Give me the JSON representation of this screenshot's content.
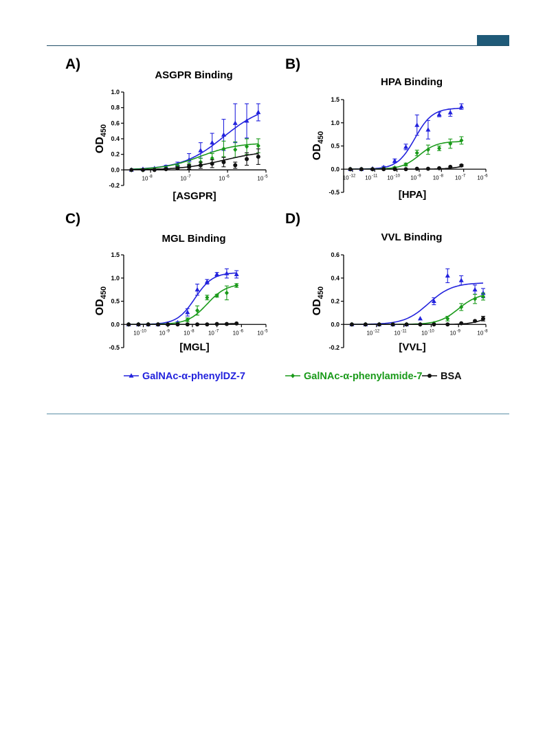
{
  "page": {
    "header_color": "#1f5a78"
  },
  "colors": {
    "dz": "#2222dd",
    "amide": "#1a9a1a",
    "bsa": "#111111"
  },
  "legend": [
    {
      "label": "GalNAc-α-phenylDZ-7",
      "color": "#2222dd",
      "marker": "triangle"
    },
    {
      "label": "GalNAc-α-phenylamide-7",
      "color": "#1a9a1a",
      "marker": "diamond"
    },
    {
      "label": "BSA",
      "color": "#111111",
      "marker": "circle"
    }
  ],
  "chart_data": [
    {
      "panel": "A)",
      "type": "scatter",
      "title": "ASGPR Binding",
      "xlabel": "[ASGPR]",
      "ylabel": "OD",
      "ylabel_sub": "450",
      "xscale": "log",
      "xlim_exp": [
        -8.7,
        -5
      ],
      "ylim": [
        -0.2,
        1.0
      ],
      "yticks": [
        -0.2,
        0.0,
        0.2,
        0.4,
        0.6,
        0.8,
        1.0
      ],
      "yticks_text": [
        "-0.2",
        "0.0",
        "0.2",
        "0.4",
        "0.6",
        "0.8",
        "1.0"
      ],
      "xticks_exp": [
        -8,
        -7,
        -6,
        -5
      ],
      "xticks_text": [
        "-8",
        "-7",
        "-6",
        "-5"
      ],
      "series": [
        {
          "name": "GalNAc-α-phenylDZ-7",
          "marker": "triangle",
          "x_exp": [
            -8.5,
            -8.2,
            -7.9,
            -7.6,
            -7.3,
            -7.0,
            -6.7,
            -6.4,
            -6.1,
            -5.8,
            -5.5,
            -5.2
          ],
          "y": [
            0.0,
            0.01,
            0.02,
            0.04,
            0.07,
            0.13,
            0.25,
            0.35,
            0.45,
            0.6,
            0.63,
            0.74
          ],
          "err": [
            0.01,
            0.01,
            0.01,
            0.02,
            0.03,
            0.08,
            0.1,
            0.12,
            0.2,
            0.25,
            0.22,
            0.11
          ],
          "fit": {
            "bottom": 0.0,
            "top": 0.85,
            "logec50": -6.1,
            "hill": 0.8
          }
        },
        {
          "name": "GalNAc-α-phenylamide-7",
          "marker": "diamond",
          "x_exp": [
            -8.5,
            -8.2,
            -7.9,
            -7.6,
            -7.3,
            -7.0,
            -6.7,
            -6.4,
            -6.1,
            -5.8,
            -5.5,
            -5.2
          ],
          "y": [
            0.0,
            0.0,
            0.01,
            0.02,
            0.04,
            0.06,
            0.1,
            0.15,
            0.27,
            0.26,
            0.3,
            0.31
          ],
          "err": [
            0.01,
            0.01,
            0.01,
            0.01,
            0.02,
            0.03,
            0.05,
            0.06,
            0.1,
            0.1,
            0.1,
            0.09
          ],
          "fit": {
            "bottom": 0.0,
            "top": 0.35,
            "logec50": -6.7,
            "hill": 0.9
          }
        },
        {
          "name": "BSA",
          "marker": "circle",
          "x_exp": [
            -8.5,
            -8.2,
            -7.9,
            -7.6,
            -7.3,
            -7.0,
            -6.7,
            -6.4,
            -6.1,
            -5.8,
            -5.5,
            -5.2
          ],
          "y": [
            0.0,
            0.0,
            0.0,
            0.01,
            0.02,
            0.04,
            0.06,
            0.08,
            0.1,
            0.06,
            0.14,
            0.17
          ],
          "err": [
            0.01,
            0.01,
            0.01,
            0.01,
            0.02,
            0.03,
            0.04,
            0.05,
            0.06,
            0.04,
            0.08,
            0.1
          ],
          "fit": {
            "bottom": 0.0,
            "top": 0.25,
            "logec50": -6.1,
            "hill": 0.8
          }
        }
      ]
    },
    {
      "panel": "B)",
      "type": "scatter",
      "title": "HPA Binding",
      "xlabel": "[HPA]",
      "ylabel": "OD",
      "ylabel_sub": "450",
      "xscale": "log",
      "xlim_exp": [
        -12.4,
        -6
      ],
      "ylim": [
        -0.5,
        1.5
      ],
      "yticks": [
        -0.5,
        0.0,
        0.5,
        1.0,
        1.5
      ],
      "yticks_text": [
        "-0.5",
        "0.0",
        "0.5",
        "1.0",
        "1.5"
      ],
      "xticks_exp": [
        -12,
        -11,
        -10,
        -9,
        -8,
        -7,
        -6
      ],
      "xticks_text": [
        "-12",
        "-11",
        "-10",
        "-9",
        "-8",
        "-7",
        "-6"
      ],
      "series": [
        {
          "name": "GalNAc-α-phenylDZ-7",
          "marker": "triangle",
          "x_exp": [
            -12.1,
            -11.6,
            -11.1,
            -10.6,
            -10.1,
            -9.6,
            -9.1,
            -8.6,
            -8.1,
            -7.6,
            -7.1
          ],
          "y": [
            0.0,
            0.0,
            0.01,
            0.04,
            0.18,
            0.48,
            0.95,
            0.85,
            1.18,
            1.22,
            1.35
          ],
          "err": [
            0.01,
            0.01,
            0.01,
            0.02,
            0.04,
            0.06,
            0.22,
            0.2,
            0.05,
            0.08,
            0.06
          ],
          "fit": {
            "bottom": 0.0,
            "top": 1.32,
            "logec50": -9.2,
            "hill": 1.1
          }
        },
        {
          "name": "GalNAc-α-phenylamide-7",
          "marker": "diamond",
          "x_exp": [
            -12.1,
            -11.6,
            -11.1,
            -10.6,
            -10.1,
            -9.6,
            -9.1,
            -8.6,
            -8.1,
            -7.6,
            -7.1
          ],
          "y": [
            0.0,
            0.0,
            0.0,
            0.01,
            0.03,
            0.1,
            0.35,
            0.42,
            0.45,
            0.55,
            0.62
          ],
          "err": [
            0.01,
            0.01,
            0.01,
            0.01,
            0.02,
            0.03,
            0.06,
            0.1,
            0.05,
            0.1,
            0.08
          ],
          "fit": {
            "bottom": 0.0,
            "top": 0.6,
            "logec50": -9.0,
            "hill": 1.1
          }
        },
        {
          "name": "BSA",
          "marker": "circle",
          "x_exp": [
            -12.1,
            -11.6,
            -11.1,
            -10.6,
            -10.1,
            -9.6,
            -9.1,
            -8.6,
            -8.1,
            -7.6,
            -7.1
          ],
          "y": [
            0.0,
            0.0,
            0.0,
            0.0,
            0.0,
            0.0,
            0.01,
            0.01,
            0.02,
            0.05,
            0.08
          ],
          "err": [
            0.005,
            0.005,
            0.005,
            0.005,
            0.005,
            0.005,
            0.01,
            0.01,
            0.01,
            0.01,
            0.02
          ],
          "fit": {
            "bottom": 0.0,
            "top": 0.2,
            "logec50": -6.7,
            "hill": 1.0
          }
        }
      ]
    },
    {
      "panel": "C)",
      "type": "scatter",
      "title": "MGL Binding",
      "xlabel": "[MGL]",
      "ylabel": "OD",
      "ylabel_sub": "450",
      "xscale": "log",
      "xlim_exp": [
        -10.8,
        -5
      ],
      "ylim": [
        -0.5,
        1.5
      ],
      "yticks": [
        -0.5,
        0.0,
        0.5,
        1.0,
        1.5
      ],
      "yticks_text": [
        "-0.5",
        "0.0",
        "0.5",
        "1.0",
        "1.5"
      ],
      "xticks_exp": [
        -10,
        -9,
        -8,
        -7,
        -6,
        -5
      ],
      "xticks_text": [
        "-10",
        "-9",
        "-8",
        "-7",
        "-6",
        "-5"
      ],
      "series": [
        {
          "name": "GalNAc-α-phenylDZ-7",
          "marker": "triangle",
          "x_exp": [
            -10.6,
            -10.2,
            -9.8,
            -9.4,
            -9.0,
            -8.6,
            -8.2,
            -7.8,
            -7.4,
            -7.0,
            -6.6,
            -6.2
          ],
          "y": [
            0.0,
            0.0,
            0.0,
            0.0,
            0.01,
            0.04,
            0.26,
            0.75,
            0.92,
            1.08,
            1.1,
            1.08
          ],
          "err": [
            0.01,
            0.01,
            0.01,
            0.01,
            0.01,
            0.02,
            0.08,
            0.12,
            0.05,
            0.04,
            0.1,
            0.08
          ],
          "fit": {
            "bottom": 0.0,
            "top": 1.12,
            "logec50": -7.9,
            "hill": 1.2
          }
        },
        {
          "name": "GalNAc-α-phenylamide-7",
          "marker": "diamond",
          "x_exp": [
            -10.6,
            -10.2,
            -9.8,
            -9.4,
            -9.0,
            -8.6,
            -8.2,
            -7.8,
            -7.4,
            -7.0,
            -6.6,
            -6.2
          ],
          "y": [
            0.0,
            0.0,
            0.0,
            0.0,
            0.0,
            0.01,
            0.1,
            0.3,
            0.58,
            0.62,
            0.68,
            0.84
          ],
          "err": [
            0.01,
            0.01,
            0.01,
            0.01,
            0.01,
            0.01,
            0.04,
            0.1,
            0.05,
            0.03,
            0.15,
            0.04
          ],
          "fit": {
            "bottom": 0.0,
            "top": 0.88,
            "logec50": -7.4,
            "hill": 1.1
          }
        },
        {
          "name": "BSA",
          "marker": "circle",
          "x_exp": [
            -10.6,
            -10.2,
            -9.8,
            -9.4,
            -9.0,
            -8.6,
            -8.2,
            -7.8,
            -7.4,
            -7.0,
            -6.6,
            -6.2
          ],
          "y": [
            0.0,
            0.0,
            0.0,
            0.0,
            0.0,
            0.0,
            0.0,
            0.0,
            0.0,
            0.01,
            0.01,
            0.02
          ],
          "err": [
            0.005,
            0.005,
            0.005,
            0.005,
            0.005,
            0.005,
            0.005,
            0.005,
            0.005,
            0.005,
            0.005,
            0.01
          ],
          "fit": {
            "bottom": 0.0,
            "top": 0.03,
            "logec50": -6.5,
            "hill": 1.0
          }
        }
      ]
    },
    {
      "panel": "D)",
      "type": "scatter",
      "title": "VVL Binding",
      "xlabel": "[VVL]",
      "ylabel": "OD",
      "ylabel_sub": "450",
      "xscale": "log",
      "xlim_exp": [
        -13.2,
        -8
      ],
      "ylim": [
        -0.2,
        0.6
      ],
      "yticks": [
        -0.2,
        0.0,
        0.2,
        0.4,
        0.6
      ],
      "yticks_text": [
        "-0.2",
        "0.0",
        "0.2",
        "0.4",
        "0.6"
      ],
      "xticks_exp": [
        -12,
        -11,
        -10,
        -9,
        -8
      ],
      "xticks_text": [
        "-12",
        "-11",
        "-10",
        "-9",
        "-8"
      ],
      "series": [
        {
          "name": "GalNAc-α-phenylDZ-7",
          "marker": "triangle",
          "x_exp": [
            -12.9,
            -12.4,
            -11.9,
            -11.4,
            -10.9,
            -10.4,
            -9.9,
            -9.4,
            -8.9,
            -8.4,
            -8.1
          ],
          "y": [
            0.0,
            0.0,
            0.0,
            0.0,
            0.0,
            0.05,
            0.2,
            0.42,
            0.38,
            0.3,
            0.27
          ],
          "err": [
            0.005,
            0.005,
            0.005,
            0.005,
            0.005,
            0.01,
            0.03,
            0.06,
            0.04,
            0.04,
            0.04
          ],
          "fit": {
            "bottom": 0.0,
            "top": 0.36,
            "logec50": -10.1,
            "hill": 1.0
          }
        },
        {
          "name": "GalNAc-α-phenylamide-7",
          "marker": "diamond",
          "x_exp": [
            -12.9,
            -12.4,
            -11.9,
            -11.4,
            -10.9,
            -10.4,
            -9.9,
            -9.4,
            -8.9,
            -8.4,
            -8.1
          ],
          "y": [
            0.0,
            0.0,
            0.0,
            0.0,
            0.0,
            0.0,
            0.01,
            0.05,
            0.15,
            0.22,
            0.24
          ],
          "err": [
            0.005,
            0.005,
            0.005,
            0.005,
            0.005,
            0.005,
            0.01,
            0.02,
            0.03,
            0.04,
            0.03
          ],
          "fit": {
            "bottom": 0.0,
            "top": 0.27,
            "logec50": -9.0,
            "hill": 1.2
          }
        },
        {
          "name": "BSA",
          "marker": "circle",
          "x_exp": [
            -12.9,
            -12.4,
            -11.9,
            -11.4,
            -10.9,
            -10.4,
            -9.9,
            -9.4,
            -8.9,
            -8.4,
            -8.1
          ],
          "y": [
            0.0,
            0.0,
            0.0,
            0.0,
            0.0,
            0.0,
            0.0,
            0.0,
            0.01,
            0.03,
            0.05
          ],
          "err": [
            0.005,
            0.005,
            0.005,
            0.005,
            0.005,
            0.005,
            0.005,
            0.005,
            0.01,
            0.01,
            0.02
          ],
          "fit": {
            "bottom": 0.0,
            "top": 0.1,
            "logec50": -8.0,
            "hill": 1.5
          }
        }
      ]
    }
  ]
}
